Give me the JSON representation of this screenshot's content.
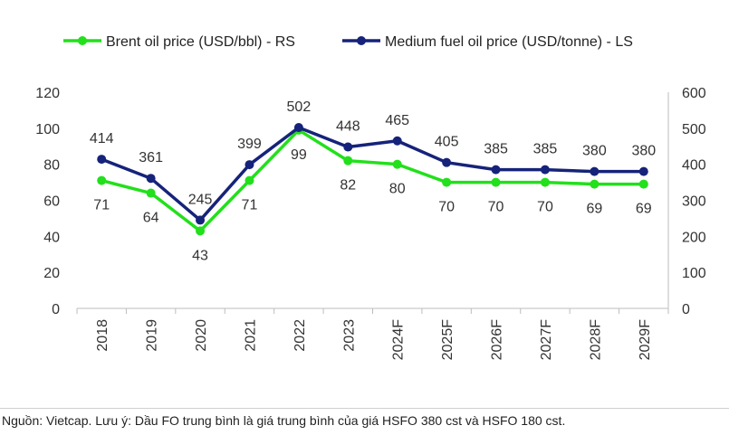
{
  "chart_data": {
    "type": "line",
    "categories": [
      "2018",
      "2019",
      "2020",
      "2021",
      "2022",
      "2023",
      "2024F",
      "2025F",
      "2026F",
      "2027F",
      "2028F",
      "2029F"
    ],
    "series": [
      {
        "name": "Brent oil price (USD/bbl) - RS",
        "axis": "left",
        "color": "#22e01b",
        "values": [
          71,
          64,
          43,
          71,
          99,
          82,
          80,
          70,
          70,
          70,
          69,
          69
        ]
      },
      {
        "name": "Medium fuel oil price (USD/tonne) - LS",
        "axis": "right",
        "color": "#16237a",
        "values": [
          414,
          361,
          245,
          399,
          502,
          448,
          465,
          405,
          385,
          385,
          380,
          380
        ]
      }
    ],
    "y_left": {
      "ticks": [
        "0",
        "20",
        "40",
        "60",
        "80",
        "100",
        "120"
      ],
      "ylim": [
        0,
        120
      ]
    },
    "y_right": {
      "ticks": [
        "0",
        "100",
        "200",
        "300",
        "400",
        "500",
        "600"
      ],
      "ylim": [
        0,
        600
      ]
    },
    "legend_position": "top",
    "grid": false
  },
  "footer": {
    "source_note": "Nguồn: Vietcap. Lưu ý: Dầu FO trung bình là giá trung bình của giá HSFO 380 cst và HSFO 180 cst."
  }
}
